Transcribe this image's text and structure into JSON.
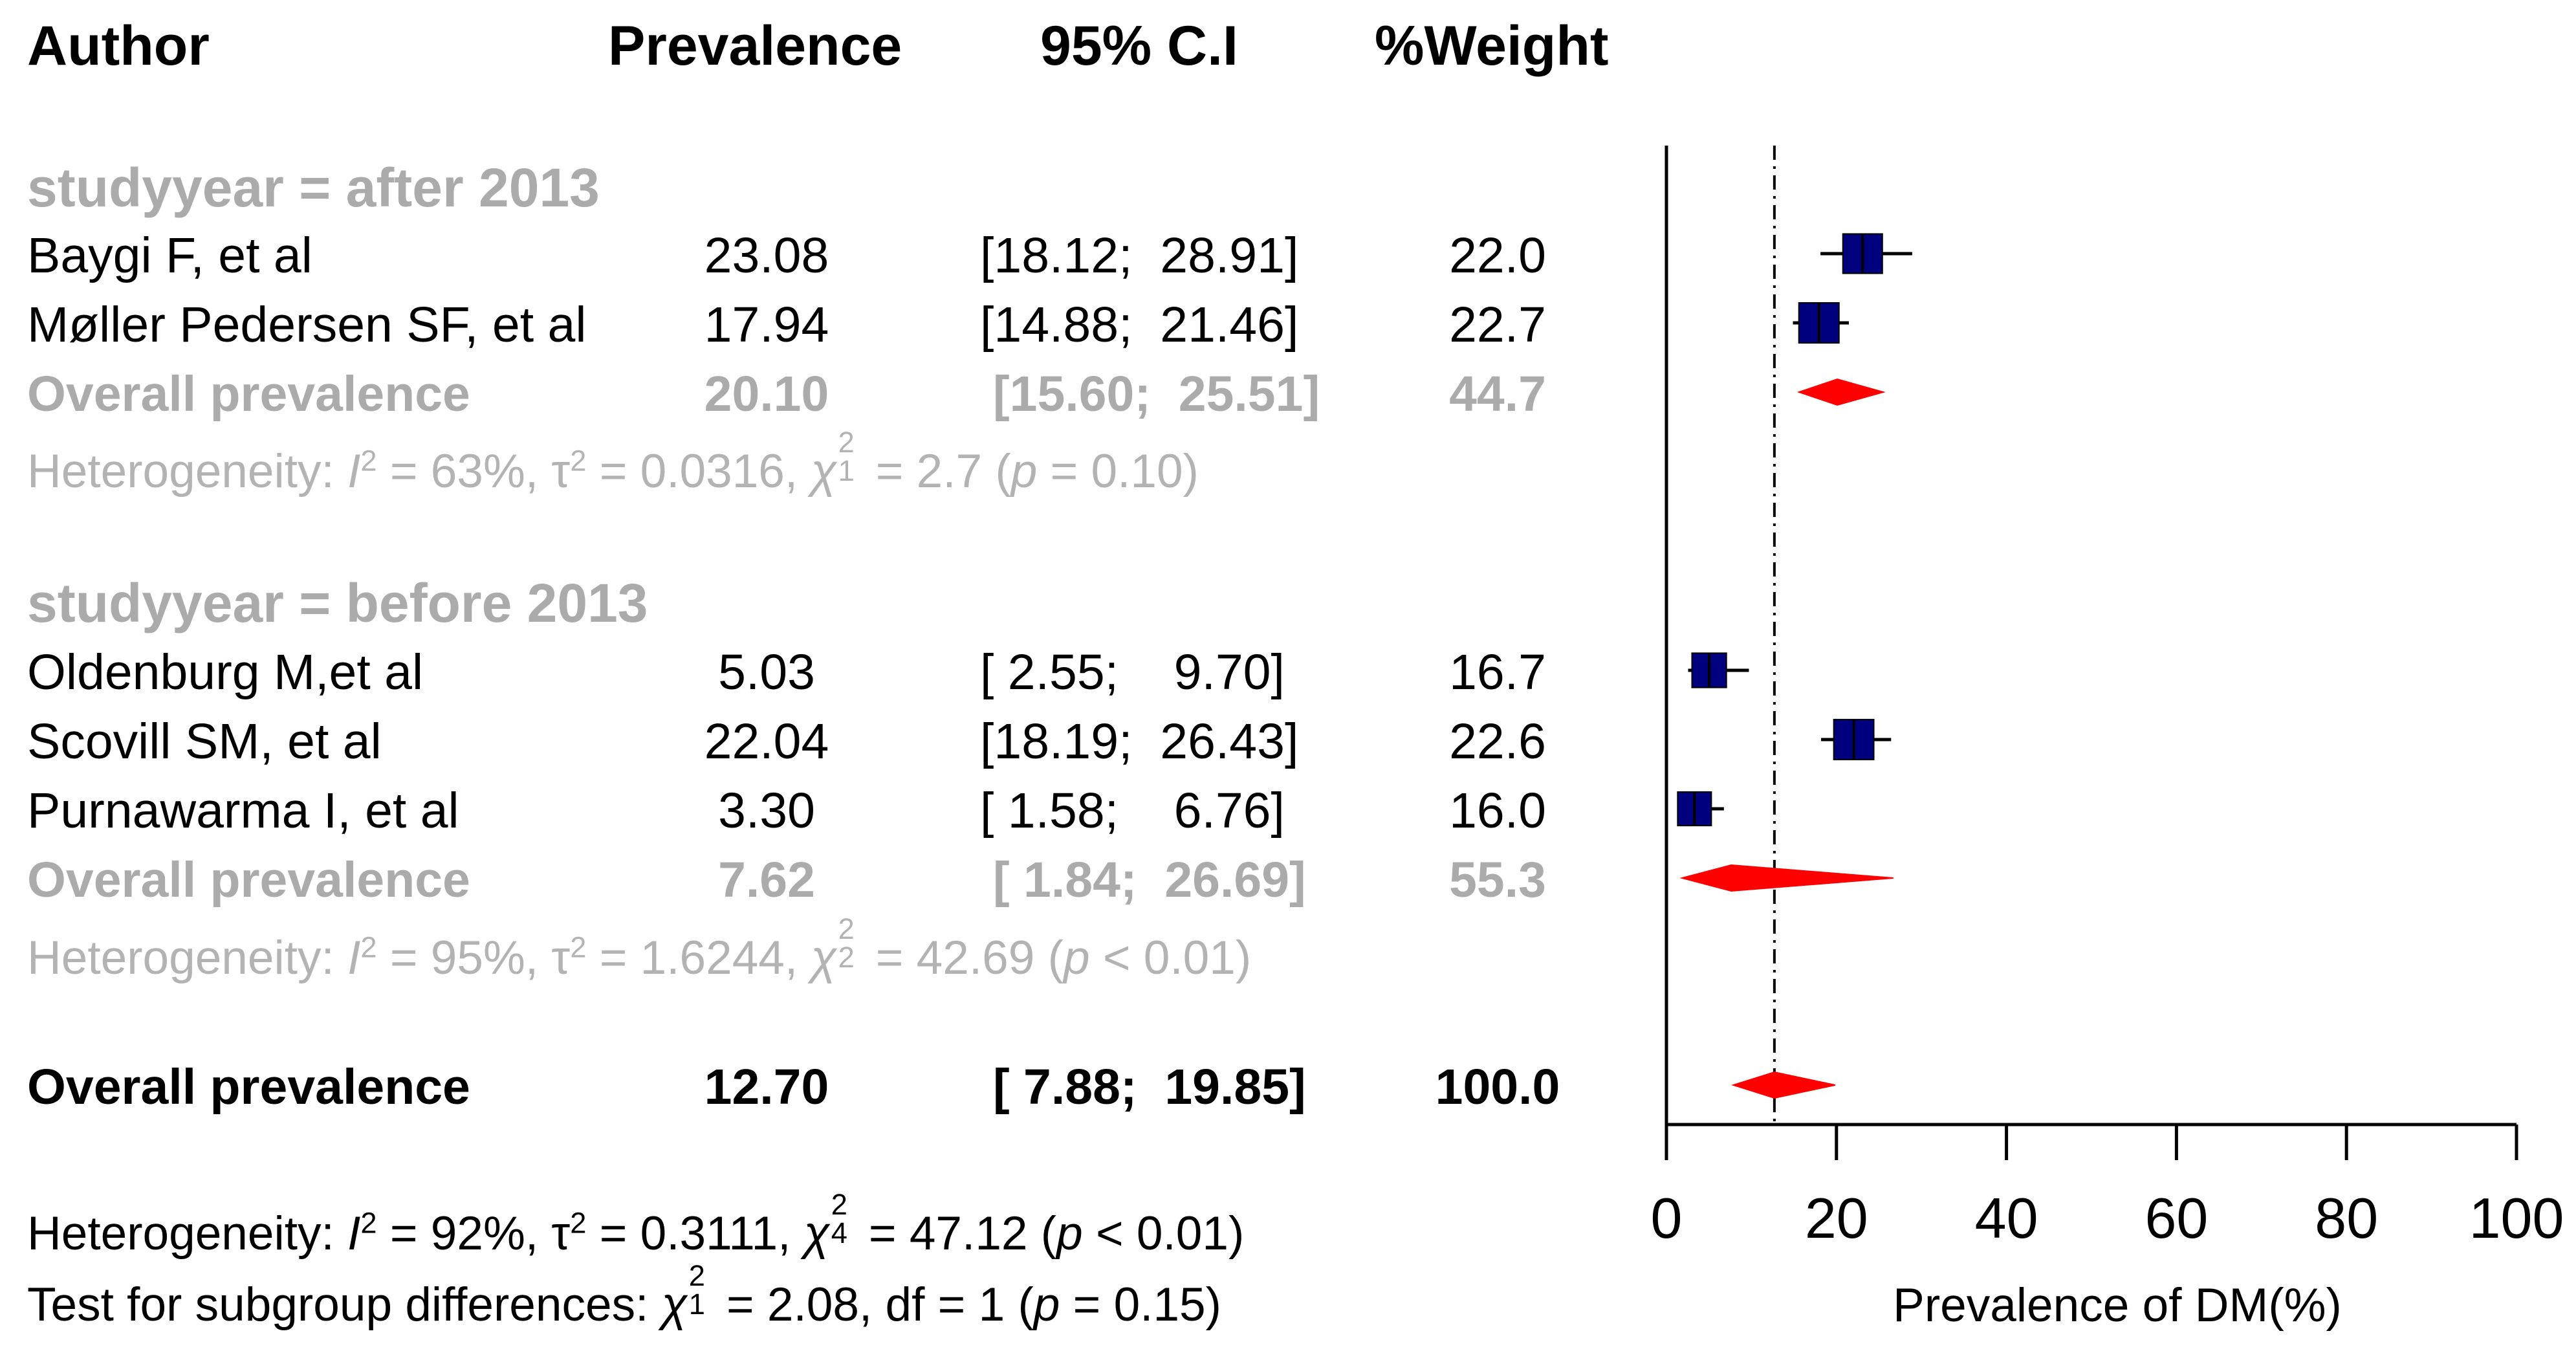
{
  "headers": {
    "author": "Author",
    "prevalence": "Prevalence",
    "ci": "95% C.I",
    "weight": "%Weight"
  },
  "groups": [
    {
      "label": "studyyear = after 2013",
      "studies": [
        {
          "author": "Baygi F, et al",
          "prevalence": "23.08",
          "ci": "[18.12;  28.91]",
          "weight": "22.0"
        },
        {
          "author": "Møller Pedersen SF, et al",
          "prevalence": "17.94",
          "ci": "[14.88;  21.46]",
          "weight": "22.7"
        }
      ],
      "overall": {
        "label": "Overall prevalence",
        "prevalence": "20.10",
        "ci": "[15.60;  25.51]",
        "weight": "44.7"
      },
      "heterogeneity": {
        "prefix": "Heterogeneity: ",
        "I": "I",
        "I_exp": "2",
        "I_val": " = 63%, ",
        "tau": "τ",
        "tau_exp": "2",
        "tau_val": " = 0.0316, ",
        "chi": "χ",
        "chi_exp": "2",
        "chi_df": "1",
        "chi_val": " = 2.7 (",
        "p": "p",
        "p_val": " = 0.10)"
      }
    },
    {
      "label": "studyyear = before 2013",
      "studies": [
        {
          "author": "Oldenburg M,et al",
          "prevalence": "5.03",
          "ci": "[ 2.55;    9.70]",
          "weight": "16.7"
        },
        {
          "author": "Scovill SM, et al",
          "prevalence": "22.04",
          "ci": "[18.19;  26.43]",
          "weight": "22.6"
        },
        {
          "author": "Purnawarma I, et al",
          "prevalence": "3.30",
          "ci": "[ 1.58;    6.76]",
          "weight": "16.0"
        }
      ],
      "overall": {
        "label": "Overall prevalence",
        "prevalence": "7.62",
        "ci": "[ 1.84;  26.69]",
        "weight": "55.3"
      },
      "heterogeneity": {
        "prefix": "Heterogeneity: ",
        "I": "I",
        "I_exp": "2",
        "I_val": " = 95%, ",
        "tau": "τ",
        "tau_exp": "2",
        "tau_val": " = 1.6244, ",
        "chi": "χ",
        "chi_exp": "2",
        "chi_df": "2",
        "chi_val": " = 42.69 (",
        "p": "p",
        "p_val": " < 0.01)"
      }
    }
  ],
  "overall": {
    "label": "Overall prevalence",
    "prevalence": "12.70",
    "ci": "[ 7.88;  19.85]",
    "weight": "100.0"
  },
  "footer": {
    "heterogeneity": {
      "prefix": "Heterogeneity: ",
      "I": "I",
      "I_exp": "2",
      "I_val": " = 92%, ",
      "tau": "τ",
      "tau_exp": "2",
      "tau_val": " = 0.3111, ",
      "chi": "χ",
      "chi_exp": "2",
      "chi_df": "4",
      "chi_val": " = 47.12 (",
      "p": "p",
      "p_val": " < 0.01)"
    },
    "subgroup": {
      "prefix": "Test for subgroup differences: ",
      "chi": "χ",
      "chi_exp": "2",
      "chi_df": "1",
      "chi_val": " = 2.08, df = 1 (",
      "p": "p",
      "p_val": " = 0.15)"
    }
  },
  "colors": {
    "study_box": "#00007f",
    "diamond": "#ff0000",
    "group_text": "#ababab",
    "line": "#000000"
  },
  "chart_data": {
    "type": "forest",
    "xlabel": "Prevalence of DM(%)",
    "xlim": [
      0,
      100
    ],
    "xticks": [
      "0",
      "20",
      "40",
      "60",
      "80",
      "100"
    ],
    "reference_line": 12.7,
    "studies": [
      {
        "name": "Baygi F, et al",
        "estimate": 23.08,
        "lower": 18.12,
        "upper": 28.91,
        "weight": 22.0
      },
      {
        "name": "Møller Pedersen SF, et al",
        "estimate": 17.94,
        "lower": 14.88,
        "upper": 21.46,
        "weight": 22.7
      },
      {
        "name": "Oldenburg M,et al",
        "estimate": 5.03,
        "lower": 2.55,
        "upper": 9.7,
        "weight": 16.7
      },
      {
        "name": "Scovill SM, et al",
        "estimate": 22.04,
        "lower": 18.19,
        "upper": 26.43,
        "weight": 22.6
      },
      {
        "name": "Purnawarma I, et al",
        "estimate": 3.3,
        "lower": 1.58,
        "upper": 6.76,
        "weight": 16.0
      }
    ],
    "subgroup_summaries": [
      {
        "name": "studyyear = after 2013",
        "estimate": 20.1,
        "lower": 15.6,
        "upper": 25.51
      },
      {
        "name": "studyyear = before 2013",
        "estimate": 7.62,
        "lower": 1.84,
        "upper": 26.69
      }
    ],
    "overall_summary": {
      "estimate": 12.7,
      "lower": 7.88,
      "upper": 19.85
    }
  }
}
